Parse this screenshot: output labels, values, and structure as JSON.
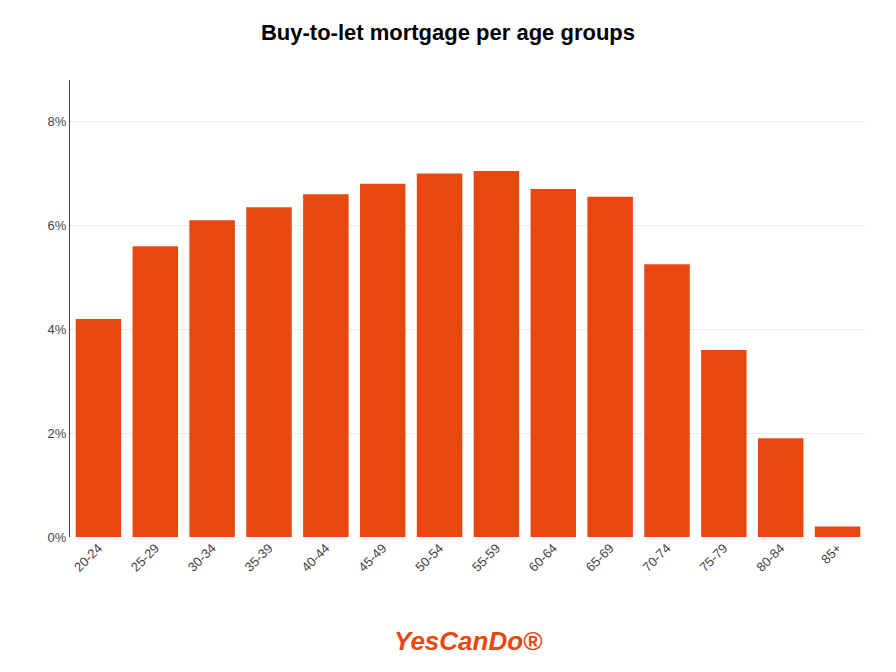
{
  "chart_data": {
    "type": "bar",
    "title": "Buy-to-let mortgage per age groups",
    "categories": [
      "20-24",
      "25-29",
      "30-34",
      "35-39",
      "40-44",
      "45-49",
      "50-54",
      "55-59",
      "60-64",
      "65-69",
      "70-74",
      "75-79",
      "80-84",
      "85+"
    ],
    "values": [
      4.2,
      5.6,
      6.1,
      6.35,
      6.6,
      6.8,
      7.0,
      7.05,
      6.7,
      6.55,
      5.25,
      3.6,
      1.9,
      0.2
    ],
    "color": "#E84710",
    "ylim": [
      0,
      8.8
    ],
    "yticks": [
      {
        "value": 0,
        "label": "0%"
      },
      {
        "value": 2,
        "label": "2%"
      },
      {
        "value": 4,
        "label": "4%"
      },
      {
        "value": 6,
        "label": "6%"
      },
      {
        "value": 8,
        "label": "8%"
      }
    ],
    "grid": true,
    "annotations": [
      {
        "text": "YesCanDo®",
        "color": "#E84710"
      }
    ]
  }
}
